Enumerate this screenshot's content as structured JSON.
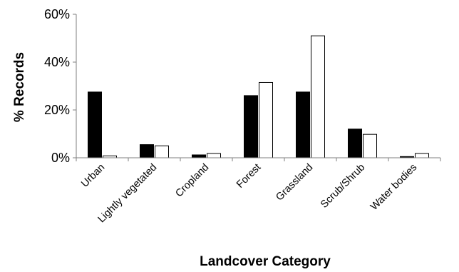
{
  "chart_data": {
    "type": "bar",
    "title": "",
    "xlabel": "Landcover Category",
    "ylabel": "% Records",
    "ylim": [
      0,
      60
    ],
    "yticks": [
      "0%",
      "20%",
      "40%",
      "60%"
    ],
    "ytick_values": [
      0,
      20,
      40,
      60
    ],
    "grid": false,
    "legend": "none",
    "categories": [
      "Urban",
      "Lightly vegetated",
      "Cropland",
      "Forest",
      "Grassland",
      "Scrub/Shrub",
      "Water bodies"
    ],
    "series": [
      {
        "color": "#000000",
        "values": [
          27.5,
          5.5,
          1.2,
          26,
          27.5,
          12,
          0.5
        ]
      },
      {
        "color": "#ffffff",
        "values": [
          0.8,
          5,
          1.8,
          31.5,
          51,
          9.8,
          1.8
        ]
      }
    ]
  }
}
